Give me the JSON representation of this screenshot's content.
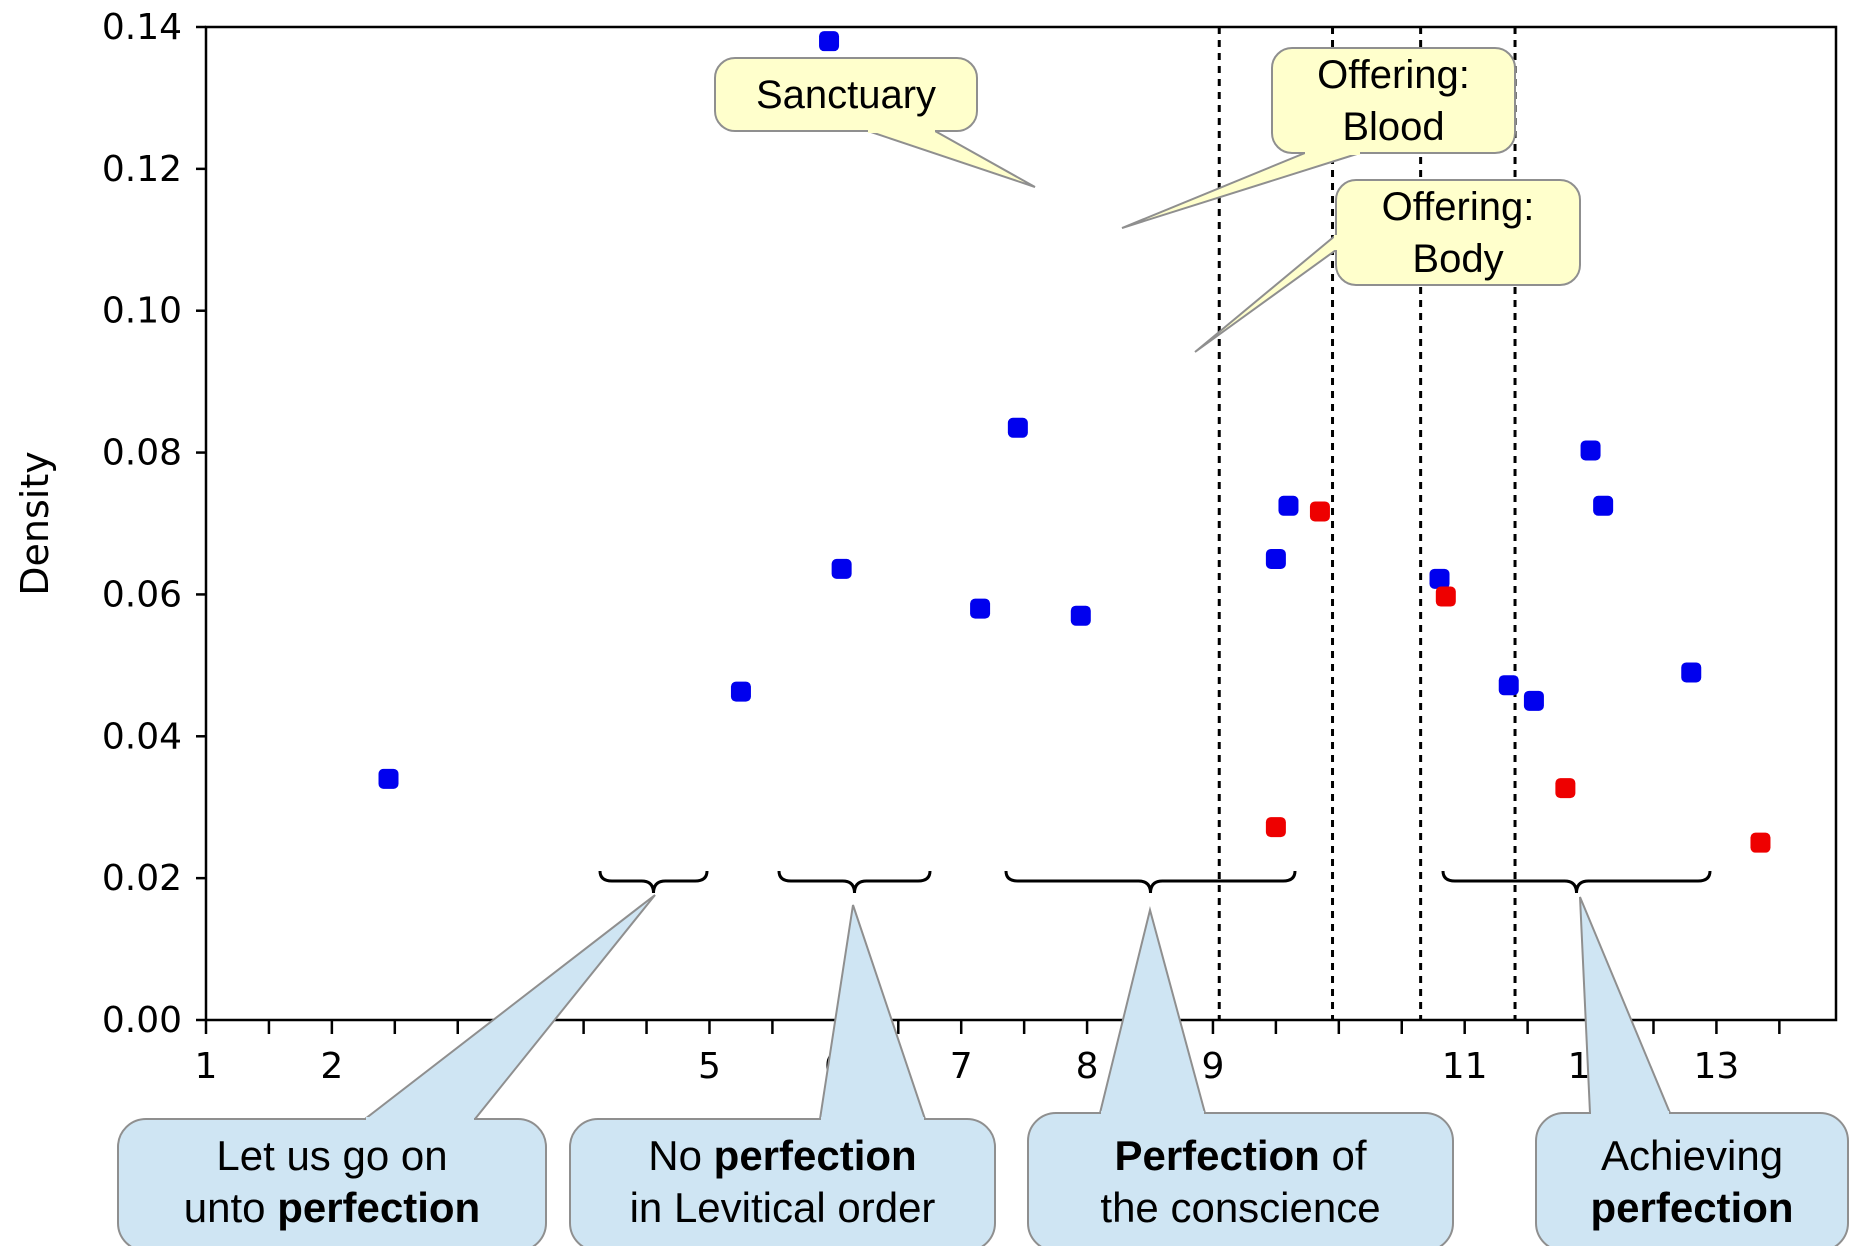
{
  "chart_data": {
    "type": "scatter",
    "title": "",
    "xlabel": "",
    "ylabel": "Density",
    "xlim": [
      1,
      13.95
    ],
    "ylim": [
      0,
      0.14
    ],
    "x_ticks": [
      "1",
      "2",
      "3",
      "5",
      "6",
      "7",
      "8",
      "9",
      "11",
      "12",
      "13"
    ],
    "x_minor_ticks": [
      1.5,
      2.5,
      3.5,
      4,
      4.5,
      5.5,
      6.5,
      7.5,
      8.5,
      9.5,
      10,
      10.5,
      11.5,
      12.5,
      13.5
    ],
    "y_ticks": [
      "0.00",
      "0.02",
      "0.04",
      "0.06",
      "0.08",
      "0.10",
      "0.12",
      "0.14"
    ],
    "grid": false,
    "legend": false,
    "series": [
      {
        "color": "#0000ee",
        "points": [
          [
            2.45,
            0.034
          ],
          [
            5.25,
            0.0463
          ],
          [
            5.95,
            0.138
          ],
          [
            6.05,
            0.0636
          ],
          [
            7.15,
            0.058
          ],
          [
            7.45,
            0.0835
          ],
          [
            7.95,
            0.057
          ],
          [
            9.5,
            0.065
          ],
          [
            9.6,
            0.0725
          ],
          [
            10.8,
            0.0622
          ],
          [
            11.35,
            0.0472
          ],
          [
            11.55,
            0.045
          ],
          [
            12.0,
            0.0803
          ],
          [
            12.1,
            0.0725
          ],
          [
            12.8,
            0.049
          ]
        ]
      },
      {
        "color": "#ee0000",
        "points": [
          [
            9.5,
            0.0272
          ],
          [
            9.85,
            0.0717
          ],
          [
            10.85,
            0.0597
          ],
          [
            11.8,
            0.0327
          ],
          [
            13.35,
            0.025
          ]
        ]
      }
    ],
    "vlines": [
      9.05,
      9.95,
      10.65,
      11.4
    ],
    "annotations": {
      "top": [
        {
          "lines": [
            "Sanctuary"
          ],
          "bold": [
            []
          ]
        },
        {
          "lines": [
            "Offering:",
            "Blood"
          ],
          "bold": [
            [],
            []
          ]
        },
        {
          "lines": [
            "Offering:",
            "Body"
          ],
          "bold": [
            [],
            []
          ]
        }
      ],
      "bottom": [
        {
          "lines": [
            "Let us go on",
            "unto perfection"
          ],
          "bold": [
            [],
            [
              "perfection"
            ]
          ]
        },
        {
          "lines": [
            "No perfection",
            "in Levitical order"
          ],
          "bold": [
            [
              "perfection"
            ],
            []
          ]
        },
        {
          "lines": [
            "Perfection of",
            "the conscience"
          ],
          "bold": [
            [
              "Perfection"
            ],
            []
          ]
        },
        {
          "lines": [
            "Achieving",
            "perfection"
          ],
          "bold": [
            [],
            [
              "perfection"
            ]
          ]
        }
      ]
    }
  }
}
